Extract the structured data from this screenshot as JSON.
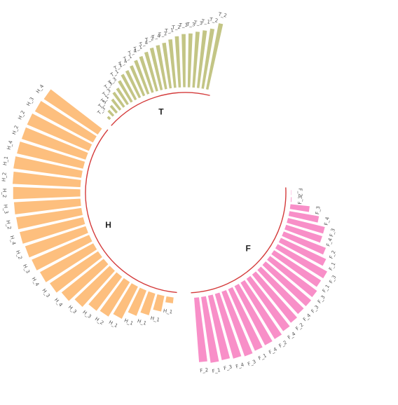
{
  "chart_data": {
    "type": "circular_bar",
    "groups": [
      {
        "id": "F",
        "label": "F",
        "color": "#F88FC8",
        "start_deg": 88,
        "end_deg": 176,
        "categories": [
          "F_2",
          "F_3",
          "F_3",
          "F_4",
          "F_3",
          "F_4",
          "F_2",
          "F_1",
          "F_3",
          "F_1",
          "F_3",
          "F_3",
          "F_4",
          "F_2",
          "F_4",
          "F_2",
          "F_4",
          "F_1",
          "F_3",
          "F_4",
          "F_3",
          "F_1",
          "F_2"
        ],
        "values": [
          1.5,
          2,
          30,
          46,
          58,
          58,
          69,
          76,
          86,
          85,
          89,
          91,
          91,
          94,
          97,
          100,
          101,
          102,
          104,
          102,
          100,
          101,
          98
        ]
      },
      {
        "id": "H",
        "label": "H",
        "color": "#FDBF7E",
        "start_deg": 186,
        "end_deg": 308,
        "categories": [
          "H_1",
          "H_1",
          "H_1",
          "H_1",
          "H_1",
          "H_2",
          "H_3",
          "H_3",
          "H_4",
          "H_3",
          "H_4",
          "H_3",
          "H_2",
          "H_4",
          "H_2",
          "H_3",
          "H_2",
          "H_2",
          "H_1",
          "H_4",
          "H_2",
          "H_2",
          "H_3",
          "H_4"
        ],
        "values": [
          10,
          25,
          35,
          42,
          55,
          62,
          65,
          74,
          82,
          88,
          92,
          95,
          97,
          99,
          100,
          101,
          102,
          103,
          104,
          103,
          102,
          102,
          100,
          98
        ]
      },
      {
        "id": "T",
        "label": "T",
        "color": "#C3C585",
        "start_deg": 313,
        "end_deg": 373,
        "categories": [
          "T_3",
          "T_3",
          "T_1",
          "T_3",
          "T_3",
          "T_3",
          "T_1",
          "T_1",
          "T_4",
          "T_1",
          "T_4",
          "T_1",
          "T_4",
          "T_2",
          "T_4",
          "T_2",
          "T_1",
          "T_2",
          "T_3",
          "T_3",
          "T_3",
          "T_1",
          "T_2",
          "T_2"
        ],
        "values": [
          6,
          12,
          15,
          21,
          28,
          30,
          38,
          44,
          46,
          50,
          55,
          58,
          62,
          66,
          68,
          70,
          74,
          78,
          81,
          82,
          85,
          88,
          92,
          102
        ]
      }
    ],
    "grid": false,
    "legend": "none"
  }
}
